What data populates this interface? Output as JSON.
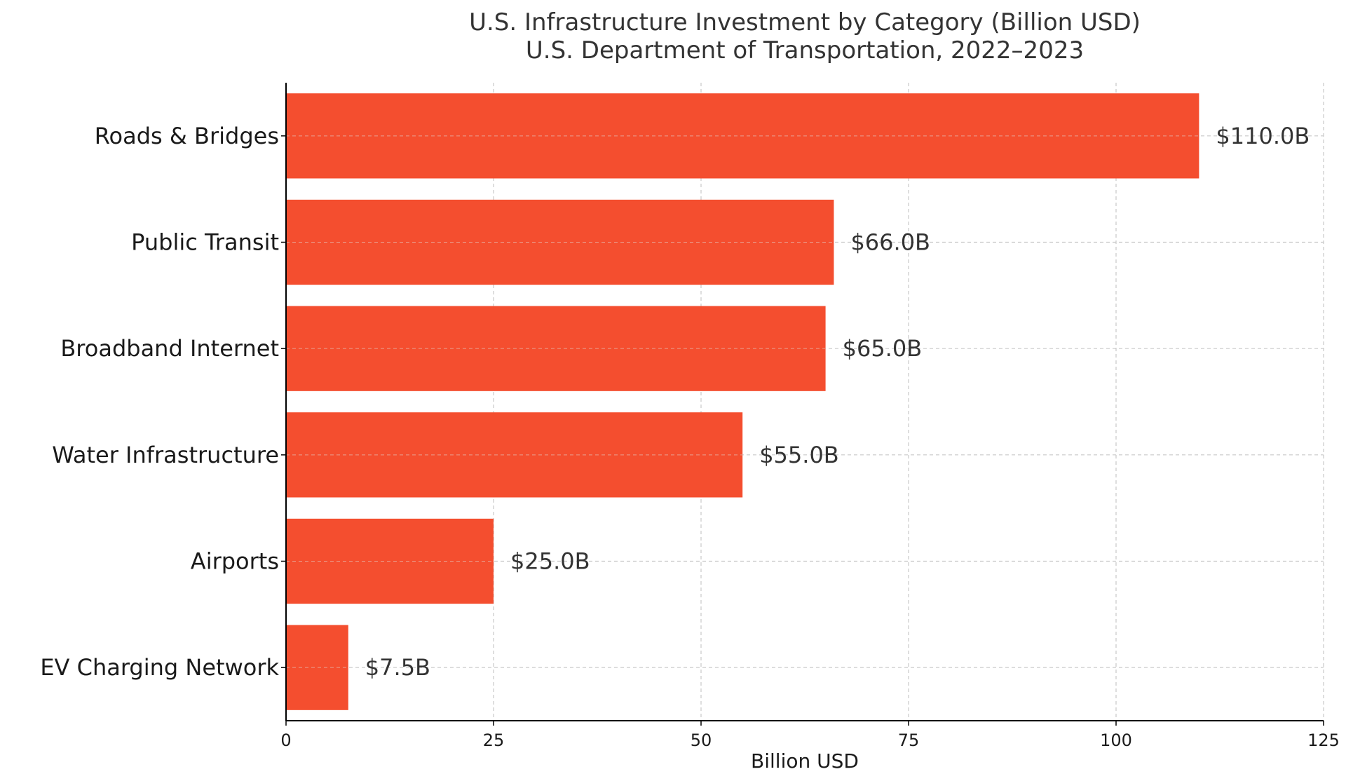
{
  "chart_data": {
    "type": "bar",
    "orientation": "horizontal",
    "title": "U.S. Infrastructure Investment by Category (Billion USD)",
    "subtitle": "U.S. Department of Transportation, 2022–2023",
    "xlabel": "Billion USD",
    "ylabel": "",
    "xlim": [
      0,
      125
    ],
    "xticks": [
      0,
      25,
      50,
      75,
      100,
      125
    ],
    "grid": true,
    "bar_color": "#f44e2f",
    "categories": [
      "Roads & Bridges",
      "Public Transit",
      "Broadband Internet",
      "Water Infrastructure",
      "Airports",
      "EV Charging Network"
    ],
    "values": [
      110.0,
      66.0,
      65.0,
      55.0,
      25.0,
      7.5
    ],
    "value_labels": [
      "$110.0B",
      "$66.0B",
      "$65.0B",
      "$55.0B",
      "$25.0B",
      "$7.5B"
    ]
  }
}
